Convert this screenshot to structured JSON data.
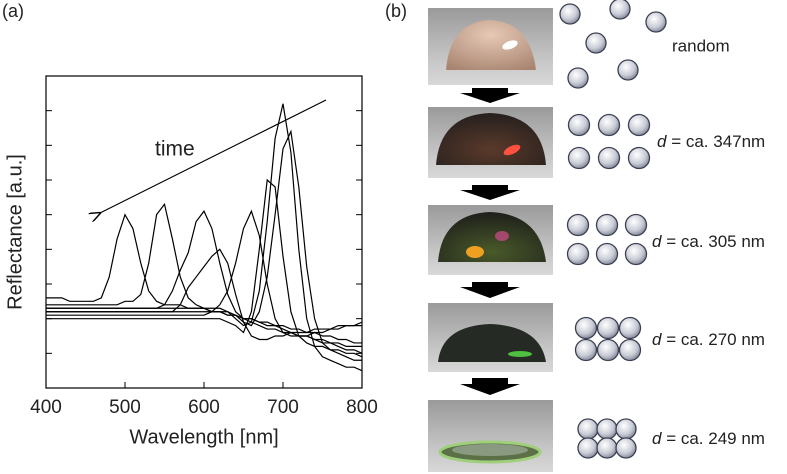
{
  "panel_a": {
    "label": "(a)"
  },
  "chart_data": {
    "type": "line",
    "xlabel": "Wavelength [nm]",
    "ylabel": "Reflectance [a.u.]",
    "annotation": "time",
    "x": [
      400,
      410,
      420,
      430,
      440,
      450,
      460,
      470,
      480,
      490,
      500,
      510,
      520,
      530,
      540,
      550,
      560,
      570,
      580,
      590,
      600,
      610,
      620,
      630,
      640,
      650,
      660,
      670,
      680,
      690,
      700,
      710,
      720,
      730,
      740,
      750,
      760,
      770,
      780,
      790,
      800
    ],
    "xlim": [
      400,
      800
    ],
    "xticks": [
      400,
      500,
      600,
      700,
      800
    ],
    "ylim": [
      0,
      9
    ],
    "yticks": [
      1,
      2,
      3,
      4,
      5,
      6,
      7,
      8
    ],
    "color": "#000000",
    "series": [
      {
        "values": [
          2.6,
          2.6,
          2.6,
          2.5,
          2.5,
          2.5,
          2.5,
          2.6,
          3.2,
          4.3,
          5.0,
          4.6,
          3.6,
          2.8,
          2.5,
          2.4,
          2.4,
          2.4,
          2.3,
          2.3,
          2.3,
          2.2,
          2.2,
          2.1,
          2.1,
          2.0,
          2.0,
          1.9,
          1.9,
          1.8,
          1.8,
          1.7,
          1.7,
          1.6,
          1.6,
          1.5,
          1.5,
          1.4,
          1.4,
          1.3,
          1.3
        ]
      },
      {
        "values": [
          2.4,
          2.4,
          2.4,
          2.4,
          2.4,
          2.4,
          2.4,
          2.4,
          2.4,
          2.4,
          2.5,
          2.5,
          2.7,
          3.6,
          5.0,
          5.3,
          4.3,
          3.2,
          2.6,
          2.4,
          2.3,
          2.2,
          2.2,
          2.1,
          2.1,
          2.0,
          2.0,
          1.9,
          1.8,
          1.8,
          1.7,
          1.6,
          1.5,
          1.5,
          1.4,
          1.3,
          1.3,
          1.2,
          1.1,
          1.1,
          1.0
        ]
      },
      {
        "values": [
          2.3,
          2.3,
          2.3,
          2.3,
          2.3,
          2.3,
          2.3,
          2.3,
          2.3,
          2.3,
          2.3,
          2.3,
          2.3,
          2.3,
          2.3,
          2.4,
          2.8,
          3.4,
          3.9,
          4.8,
          5.1,
          4.6,
          3.6,
          2.7,
          2.2,
          2.0,
          1.9,
          1.8,
          1.7,
          1.7,
          1.6,
          1.6,
          1.5,
          1.5,
          1.4,
          1.4,
          1.3,
          1.3,
          1.2,
          1.2,
          1.2
        ]
      },
      {
        "values": [
          2.2,
          2.2,
          2.2,
          2.2,
          2.2,
          2.2,
          2.2,
          2.2,
          2.2,
          2.2,
          2.2,
          2.2,
          2.2,
          2.2,
          2.2,
          2.2,
          2.2,
          2.4,
          2.9,
          3.2,
          3.5,
          3.8,
          4.0,
          3.6,
          2.7,
          1.9,
          1.5,
          1.4,
          1.4,
          1.5,
          1.5,
          1.6,
          1.6,
          1.6,
          1.7,
          1.7,
          1.7,
          1.8,
          1.8,
          1.8,
          1.8
        ]
      },
      {
        "values": [
          2.1,
          2.1,
          2.1,
          2.1,
          2.1,
          2.1,
          2.1,
          2.1,
          2.1,
          2.1,
          2.1,
          2.1,
          2.1,
          2.1,
          2.1,
          2.1,
          2.1,
          2.1,
          2.1,
          2.1,
          2.1,
          2.2,
          2.4,
          2.8,
          3.6,
          4.6,
          5.1,
          4.4,
          3.0,
          2.0,
          1.6,
          1.5,
          1.5,
          1.5,
          1.6,
          1.6,
          1.7,
          1.7,
          1.8,
          1.8,
          1.9
        ]
      },
      {
        "values": [
          2.0,
          2.0,
          2.0,
          2.0,
          2.0,
          2.0,
          2.0,
          2.0,
          2.0,
          2.0,
          2.0,
          2.0,
          2.0,
          2.0,
          2.0,
          2.0,
          2.0,
          2.0,
          2.0,
          2.0,
          2.0,
          2.0,
          2.0,
          1.9,
          1.8,
          1.6,
          2.2,
          4.0,
          6.0,
          5.8,
          3.8,
          2.2,
          1.5,
          1.3,
          1.2,
          1.2,
          1.1,
          1.1,
          1.0,
          1.0,
          0.9
        ]
      },
      {
        "values": [
          2.3,
          2.3,
          2.3,
          2.3,
          2.3,
          2.3,
          2.3,
          2.3,
          2.3,
          2.3,
          2.3,
          2.3,
          2.3,
          2.3,
          2.3,
          2.3,
          2.3,
          2.3,
          2.3,
          2.3,
          2.3,
          2.3,
          2.3,
          2.2,
          2.0,
          1.8,
          1.9,
          2.8,
          4.8,
          7.2,
          8.2,
          6.8,
          4.0,
          2.0,
          1.2,
          0.9,
          0.8,
          0.7,
          0.6,
          0.6,
          0.5
        ]
      },
      {
        "values": [
          2.2,
          2.2,
          2.2,
          2.2,
          2.2,
          2.2,
          2.2,
          2.2,
          2.2,
          2.2,
          2.2,
          2.2,
          2.2,
          2.2,
          2.2,
          2.2,
          2.2,
          2.2,
          2.2,
          2.2,
          2.2,
          2.2,
          2.2,
          2.2,
          2.1,
          1.9,
          1.8,
          2.2,
          3.2,
          5.0,
          6.9,
          7.4,
          5.8,
          3.5,
          2.0,
          1.3,
          1.1,
          1.0,
          0.9,
          0.8,
          0.8
        ]
      }
    ]
  },
  "panel_b": {
    "label": "(b)",
    "rows": [
      {
        "text": "random"
      },
      {
        "variable": "d",
        "text": " = ca. 347nm"
      },
      {
        "variable": "d",
        "text": " = ca. 305 nm"
      },
      {
        "variable": "d",
        "text": " = ca. 270 nm"
      },
      {
        "variable": "d",
        "text": " = ca. 249 nm"
      }
    ]
  }
}
